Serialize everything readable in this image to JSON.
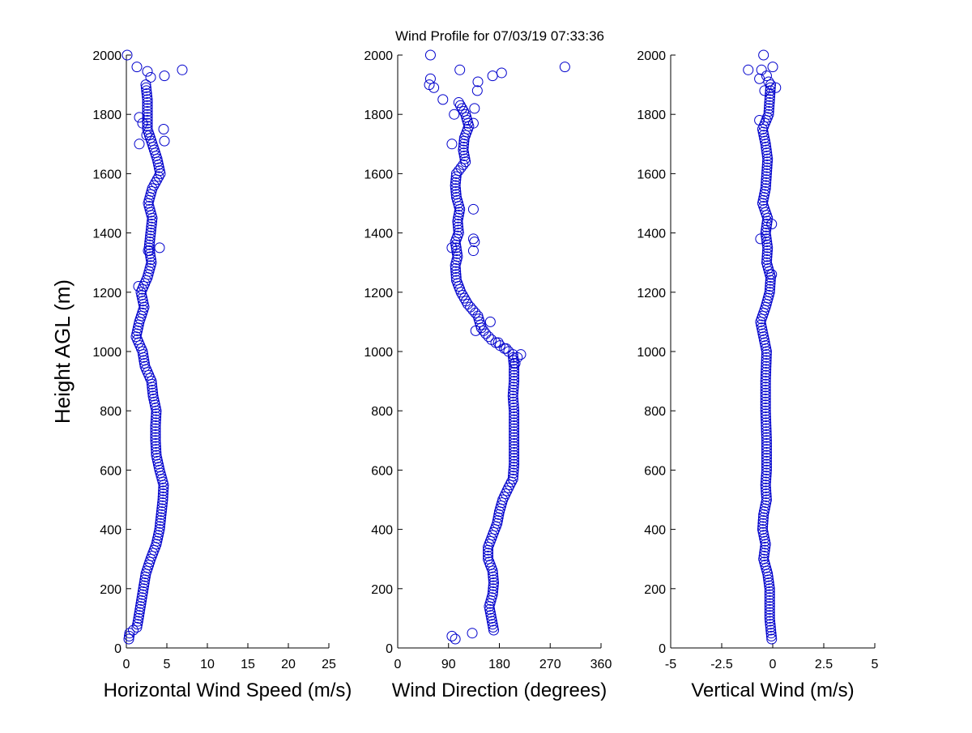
{
  "chart_data": {
    "title": "Wind Profile for  07/03/19 07:33:36",
    "ylabel": "Height AGL (m)",
    "ylim": [
      0,
      2000
    ],
    "yticks": [
      "0",
      "200",
      "400",
      "600",
      "800",
      "1000",
      "1200",
      "1400",
      "1600",
      "1800",
      "2000"
    ],
    "panels": [
      {
        "id": "speed",
        "type": "scatter",
        "xlabel": "Horizontal Wind Speed (m/s)",
        "xlim": [
          0,
          25
        ],
        "xtick_values": [
          0,
          5,
          10,
          15,
          20,
          25
        ],
        "xtick_labels": [
          "0",
          "5",
          "10",
          "15",
          "20",
          "25"
        ],
        "profile": [
          [
            30,
            0.3
          ],
          [
            50,
            0.4
          ],
          [
            70,
            1.3
          ],
          [
            100,
            1.5
          ],
          [
            150,
            1.8
          ],
          [
            200,
            2.1
          ],
          [
            250,
            2.4
          ],
          [
            300,
            3.0
          ],
          [
            350,
            3.7
          ],
          [
            400,
            4.1
          ],
          [
            450,
            4.3
          ],
          [
            500,
            4.5
          ],
          [
            550,
            4.6
          ],
          [
            600,
            4.1
          ],
          [
            650,
            3.7
          ],
          [
            700,
            3.6
          ],
          [
            750,
            3.6
          ],
          [
            800,
            3.7
          ],
          [
            850,
            3.3
          ],
          [
            900,
            3.1
          ],
          [
            950,
            2.3
          ],
          [
            1000,
            2.0
          ],
          [
            1050,
            1.2
          ],
          [
            1100,
            1.6
          ],
          [
            1150,
            2.2
          ],
          [
            1200,
            1.8
          ],
          [
            1250,
            2.6
          ],
          [
            1300,
            3.1
          ],
          [
            1350,
            2.8
          ],
          [
            1400,
            3.0
          ],
          [
            1450,
            3.2
          ],
          [
            1500,
            2.7
          ],
          [
            1550,
            3.2
          ],
          [
            1600,
            4.2
          ],
          [
            1650,
            3.8
          ],
          [
            1700,
            3.2
          ],
          [
            1750,
            2.6
          ],
          [
            1800,
            2.6
          ],
          [
            1850,
            2.6
          ],
          [
            1900,
            2.4
          ]
        ],
        "outliers": [
          [
            2000,
            0.1
          ],
          [
            1960,
            1.3
          ],
          [
            1950,
            6.9
          ],
          [
            1930,
            4.7
          ],
          [
            1945,
            2.6
          ],
          [
            1925,
            3.0
          ],
          [
            1750,
            4.6
          ],
          [
            1710,
            4.7
          ],
          [
            1700,
            1.6
          ],
          [
            1730,
            2.5
          ],
          [
            1350,
            4.1
          ],
          [
            1340,
            2.7
          ],
          [
            1770,
            2.0
          ],
          [
            1790,
            1.6
          ],
          [
            1220,
            1.5
          ]
        ]
      },
      {
        "id": "direction",
        "type": "scatter",
        "xlabel": "Wind Direction (degrees)",
        "xlim": [
          0,
          360
        ],
        "xtick_values": [
          0,
          90,
          180,
          270,
          360
        ],
        "xtick_labels": [
          "0",
          "90",
          "180",
          "270",
          "360"
        ],
        "profile": [
          [
            60,
            170
          ],
          [
            100,
            166
          ],
          [
            140,
            162
          ],
          [
            180,
            168
          ],
          [
            220,
            170
          ],
          [
            260,
            168
          ],
          [
            300,
            160
          ],
          [
            340,
            160
          ],
          [
            380,
            168
          ],
          [
            420,
            176
          ],
          [
            460,
            180
          ],
          [
            500,
            186
          ],
          [
            540,
            196
          ],
          [
            570,
            204
          ],
          [
            620,
            206
          ],
          [
            680,
            206
          ],
          [
            740,
            206
          ],
          [
            800,
            206
          ],
          [
            850,
            204
          ],
          [
            900,
            206
          ],
          [
            950,
            206
          ],
          [
            990,
            204
          ],
          [
            1040,
            166
          ],
          [
            1060,
            156
          ],
          [
            1080,
            148
          ],
          [
            1120,
            142
          ],
          [
            1160,
            124
          ],
          [
            1200,
            112
          ],
          [
            1240,
            104
          ],
          [
            1290,
            102
          ],
          [
            1320,
            106
          ],
          [
            1370,
            102
          ],
          [
            1400,
            108
          ],
          [
            1440,
            106
          ],
          [
            1480,
            110
          ],
          [
            1520,
            104
          ],
          [
            1560,
            102
          ],
          [
            1600,
            104
          ],
          [
            1640,
            120
          ],
          [
            1680,
            116
          ],
          [
            1720,
            118
          ],
          [
            1760,
            126
          ],
          [
            1800,
            120
          ],
          [
            1840,
            108
          ]
        ],
        "outliers": [
          [
            2000,
            58
          ],
          [
            1920,
            58
          ],
          [
            1900,
            56
          ],
          [
            1890,
            64
          ],
          [
            1850,
            80
          ],
          [
            1960,
            296
          ],
          [
            1950,
            110
          ],
          [
            1940,
            184
          ],
          [
            1930,
            168
          ],
          [
            1910,
            142
          ],
          [
            1880,
            141
          ],
          [
            1820,
            136
          ],
          [
            1770,
            134
          ],
          [
            1800,
            100
          ],
          [
            1700,
            96
          ],
          [
            1480,
            134
          ],
          [
            1380,
            134
          ],
          [
            1370,
            136
          ],
          [
            1340,
            134
          ],
          [
            1350,
            96
          ],
          [
            1100,
            164
          ],
          [
            1070,
            138
          ],
          [
            1030,
            178
          ],
          [
            1010,
            192
          ],
          [
            990,
            218
          ],
          [
            980,
            212
          ],
          [
            960,
            208
          ],
          [
            50,
            132
          ],
          [
            40,
            96
          ],
          [
            30,
            102
          ]
        ]
      },
      {
        "id": "vertical",
        "type": "scatter",
        "xlabel": "Vertical Wind (m/s)",
        "xlim": [
          -5,
          5
        ],
        "xtick_values": [
          -5,
          -2.5,
          0,
          2.5,
          5
        ],
        "xtick_labels": [
          "-5",
          "-2.5",
          "0",
          "2.5",
          "5"
        ],
        "profile": [
          [
            30,
            -0.05
          ],
          [
            100,
            -0.15
          ],
          [
            200,
            -0.15
          ],
          [
            250,
            -0.25
          ],
          [
            300,
            -0.45
          ],
          [
            350,
            -0.35
          ],
          [
            400,
            -0.5
          ],
          [
            450,
            -0.45
          ],
          [
            500,
            -0.3
          ],
          [
            550,
            -0.35
          ],
          [
            600,
            -0.3
          ],
          [
            700,
            -0.3
          ],
          [
            800,
            -0.35
          ],
          [
            900,
            -0.35
          ],
          [
            1000,
            -0.3
          ],
          [
            1050,
            -0.45
          ],
          [
            1100,
            -0.6
          ],
          [
            1150,
            -0.35
          ],
          [
            1200,
            -0.15
          ],
          [
            1250,
            -0.1
          ],
          [
            1300,
            -0.3
          ],
          [
            1350,
            -0.25
          ],
          [
            1400,
            -0.35
          ],
          [
            1450,
            -0.25
          ],
          [
            1500,
            -0.5
          ],
          [
            1550,
            -0.35
          ],
          [
            1600,
            -0.3
          ],
          [
            1650,
            -0.25
          ],
          [
            1700,
            -0.35
          ],
          [
            1750,
            -0.5
          ],
          [
            1800,
            -0.2
          ],
          [
            1850,
            -0.15
          ],
          [
            1900,
            -0.1
          ]
        ],
        "outliers": [
          [
            2000,
            -0.45
          ],
          [
            1960,
            0.0
          ],
          [
            1950,
            -1.2
          ],
          [
            1950,
            -0.55
          ],
          [
            1930,
            -0.3
          ],
          [
            1920,
            -0.65
          ],
          [
            1910,
            -0.2
          ],
          [
            1890,
            0.15
          ],
          [
            1880,
            -0.4
          ],
          [
            1780,
            -0.65
          ],
          [
            1430,
            -0.05
          ],
          [
            1380,
            -0.6
          ],
          [
            1260,
            -0.05
          ]
        ]
      }
    ]
  }
}
